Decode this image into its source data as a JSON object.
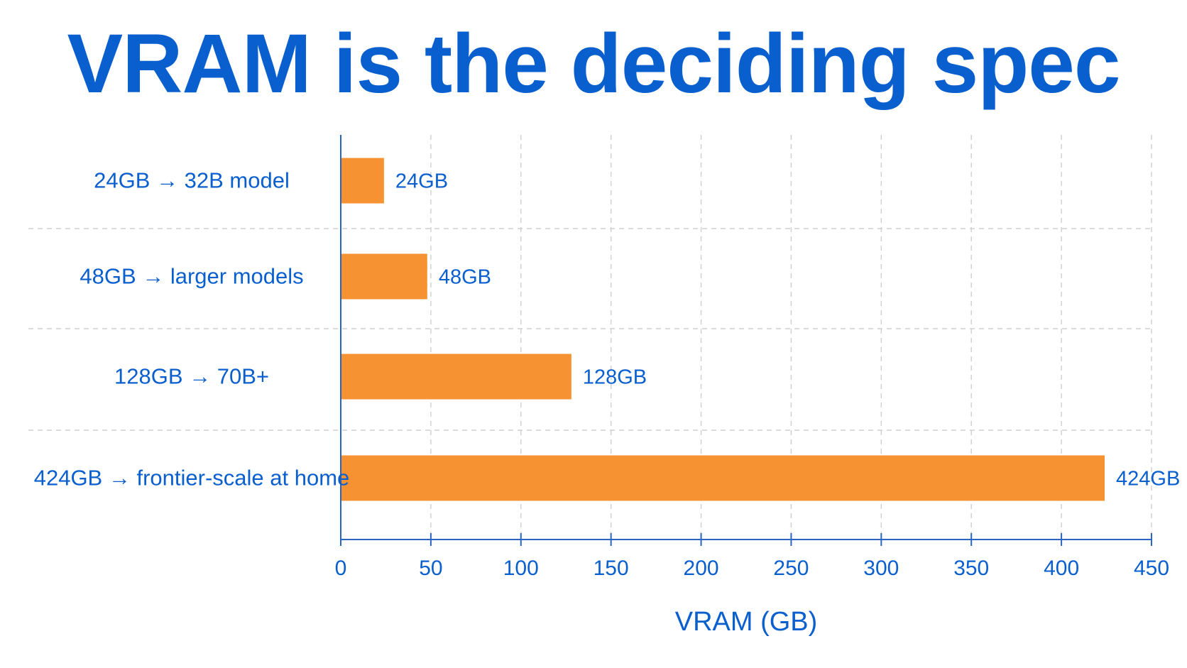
{
  "colors": {
    "title": "#0a5fcf",
    "text": "#0a5fcf",
    "bar": "#f79232",
    "axis": "#2a64c4",
    "grid": "#cfcfcf"
  },
  "chart_data": {
    "type": "bar",
    "orientation": "horizontal",
    "title": "VRAM is the deciding spec",
    "xlabel": "VRAM (GB)",
    "ylabel": "",
    "categories": [
      "24GB → 32B model",
      "48GB → larger models",
      "128GB → 70B+",
      "424GB → frontier-scale at home"
    ],
    "values": [
      24,
      48,
      128,
      424
    ],
    "data_labels": [
      "24GB",
      "48GB",
      "128GB",
      "424GB"
    ],
    "xlim": [
      0,
      450
    ],
    "xticks": [
      0,
      50,
      100,
      150,
      200,
      250,
      300,
      350,
      400,
      450
    ],
    "grid": true,
    "legend": "none"
  }
}
